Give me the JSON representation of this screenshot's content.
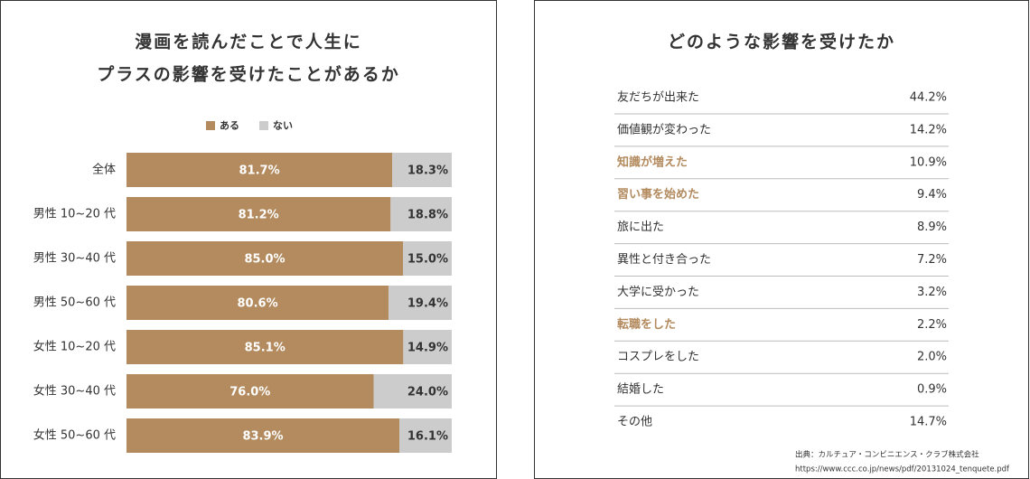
{
  "chart_data": {
    "type": "stacked-bar-horizontal",
    "title": [
      "漫画を読んだことで人生に",
      "プラスの影響を受けたことがあるか"
    ],
    "categories": [
      "全体",
      "男性 10~20 代",
      "男性 30~40 代",
      "男性 50~60 代",
      "女性 10~20 代",
      "女性 30~40 代",
      "女性 50~60 代"
    ],
    "series": [
      {
        "name": "ある",
        "color": "#b38b5f",
        "values": [
          81.7,
          81.2,
          85.0,
          80.6,
          85.1,
          76.0,
          83.9
        ],
        "value_labels": [
          "81.7%",
          "81.2%",
          "85.0%",
          "80.6%",
          "85.1%",
          "76.0%",
          "83.9%"
        ]
      },
      {
        "name": "ない",
        "color": "#cccccc",
        "values": [
          18.3,
          18.8,
          15.0,
          19.4,
          14.9,
          24.0,
          16.1
        ],
        "value_labels": [
          "18.3%",
          "18.8%",
          "15.0%",
          "19.4%",
          "14.9%",
          "24.0%",
          "16.1%"
        ]
      }
    ],
    "legend": "top"
  },
  "table": {
    "title": "どのような影響を受けたか",
    "rows": [
      {
        "label": "友だちが出来た",
        "value": "44.2%",
        "color": "#333333"
      },
      {
        "label": "価値観が変わった",
        "value": "14.2%",
        "color": "#333333"
      },
      {
        "label": "知識が増えた",
        "value": "10.9%",
        "color": "#b38b5f"
      },
      {
        "label": "習い事を始めた",
        "value": "9.4%",
        "color": "#b38b5f"
      },
      {
        "label": "旅に出た",
        "value": "8.9%",
        "color": "#333333"
      },
      {
        "label": "異性と付き合った",
        "value": "7.2%",
        "color": "#333333"
      },
      {
        "label": "大学に受かった",
        "value": "3.2%",
        "color": "#333333"
      },
      {
        "label": "転職をした",
        "value": "2.2%",
        "color": "#b38b5f"
      },
      {
        "label": "コスプレをした",
        "value": "2.0%",
        "color": "#333333"
      },
      {
        "label": "結婚した",
        "value": "0.9%",
        "color": "#333333"
      },
      {
        "label": "その他",
        "value": "14.7%",
        "color": "#333333"
      }
    ]
  },
  "source": [
    "出典：カルチュア・コンビニエンス・クラブ株式会社",
    "https://www.ccc.co.jp/news/pdf/20131024_tenquete.pdf"
  ]
}
